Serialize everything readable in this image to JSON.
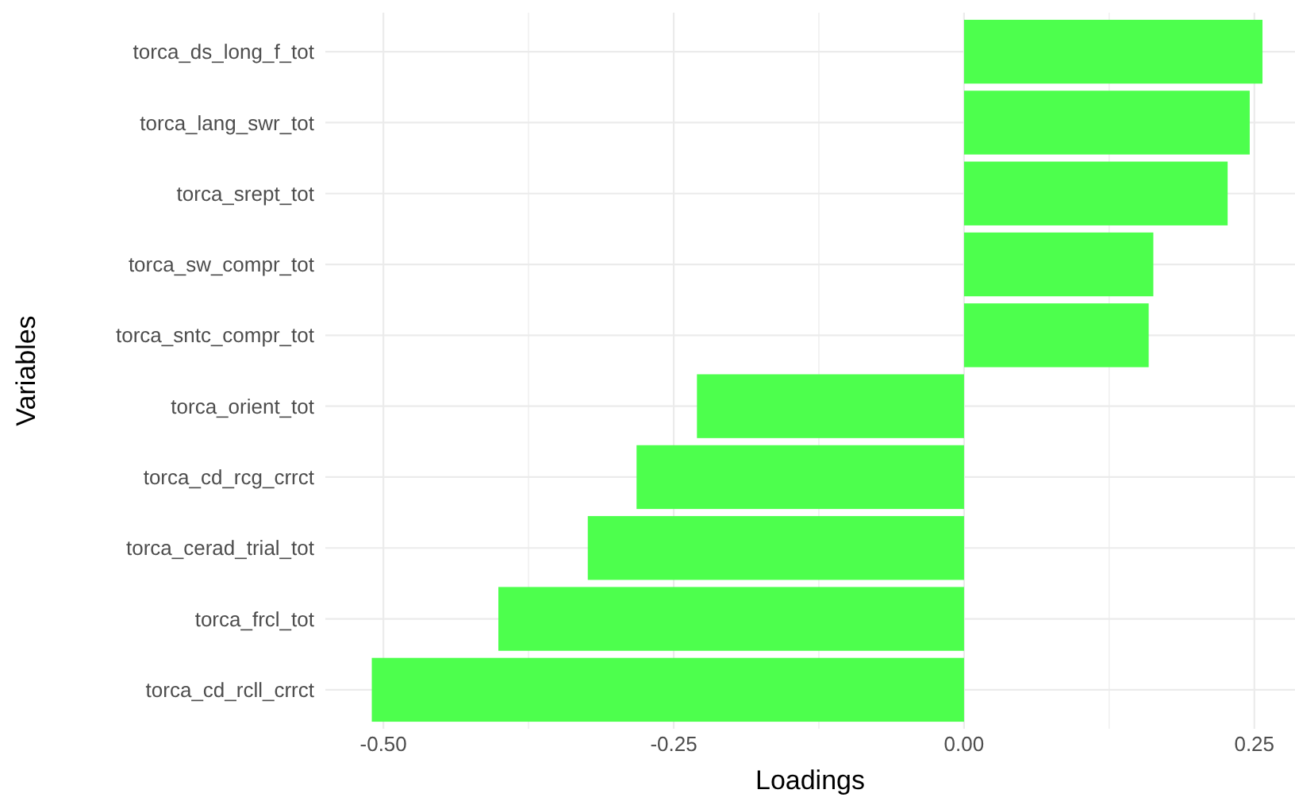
{
  "chart_data": {
    "type": "bar",
    "orientation": "horizontal",
    "xlabel": "Loadings",
    "ylabel": "Variables",
    "categories": [
      "torca_ds_long_f_tot",
      "torca_lang_swr_tot",
      "torca_srept_tot",
      "torca_sw_compr_tot",
      "torca_sntc_compr_tot",
      "torca_orient_tot",
      "torca_cd_rcg_crrct",
      "torca_cerad_trial_tot",
      "torca_frcl_tot",
      "torca_cd_rcll_crrct"
    ],
    "values": [
      0.257,
      0.246,
      0.227,
      0.163,
      0.159,
      -0.23,
      -0.282,
      -0.324,
      -0.401,
      -0.51
    ],
    "color": "#4dff4d",
    "xlim": [
      -0.55,
      0.285
    ],
    "xticks": [
      {
        "value": -0.5,
        "label": "-0.50"
      },
      {
        "value": -0.375,
        "label": null
      },
      {
        "value": -0.25,
        "label": "-0.25"
      },
      {
        "value": -0.125,
        "label": null
      },
      {
        "value": 0,
        "label": "0.00"
      },
      {
        "value": 0.125,
        "label": null
      },
      {
        "value": 0.25,
        "label": "0.25"
      }
    ],
    "grid": true
  }
}
